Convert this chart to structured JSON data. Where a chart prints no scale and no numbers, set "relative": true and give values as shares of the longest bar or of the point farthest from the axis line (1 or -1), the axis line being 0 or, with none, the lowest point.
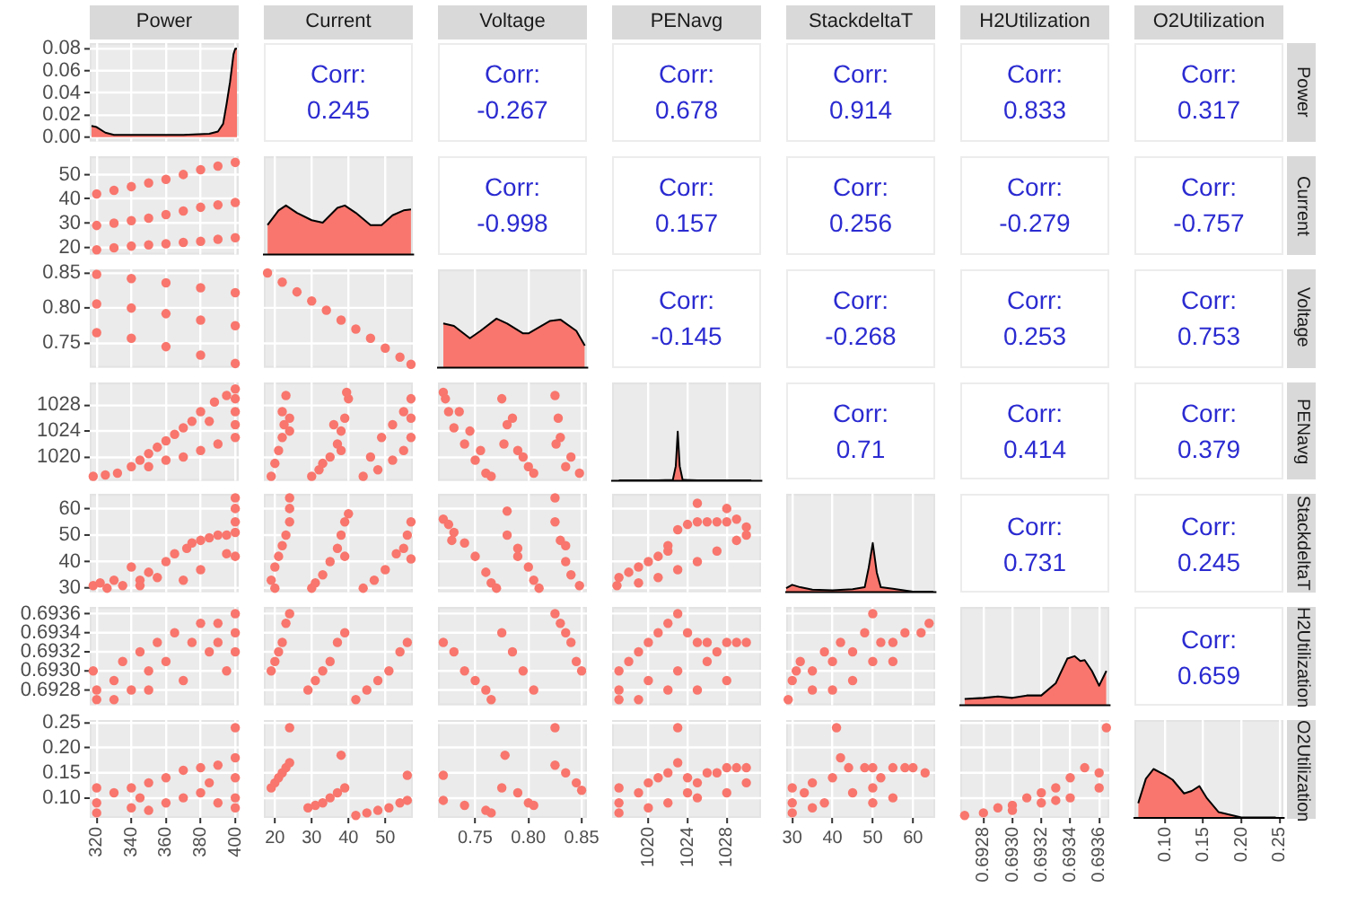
{
  "chart_data": [
    {
      "type": "area",
      "title": "Power",
      "x": [
        317,
        320,
        325,
        330,
        350,
        370,
        385,
        390,
        393,
        395,
        397,
        399,
        400,
        401
      ],
      "values": [
        0.01,
        0.009,
        0.004,
        0.002,
        0.002,
        0.002,
        0.003,
        0.005,
        0.012,
        0.03,
        0.05,
        0.075,
        0.08,
        0.08
      ],
      "color": "#f8766d",
      "xlim": [
        316,
        402
      ],
      "xticks": [
        320,
        340,
        360,
        380,
        400
      ],
      "ylim": [
        -0.004,
        0.085
      ],
      "yticks": [
        {
          "value": 0,
          "label": "0.00"
        },
        {
          "value": 0.02,
          "label": "0.02"
        },
        {
          "value": 0.04,
          "label": "0.04"
        },
        {
          "value": 0.06,
          "label": "0.06"
        },
        {
          "value": 0.08,
          "label": "0.08"
        }
      ],
      "grid": true,
      "tick_labels": "y"
    },
    {
      "type": "other",
      "categories": [
        "Current",
        "Voltage",
        "PENavg",
        "StackdeltaT",
        "H2Utilization",
        "O2Utilization"
      ],
      "y2label": "Power",
      "annotations": [
        "Corr:",
        "0.245",
        "Corr:",
        "-0.267",
        "Corr:",
        "0.678",
        "Corr:",
        "0.914",
        "Corr:",
        "0.833",
        "Corr:",
        "0.317"
      ]
    },
    {
      "type": "scatter",
      "x": [
        320,
        330,
        340,
        350,
        360,
        370,
        380,
        390,
        400,
        320,
        330,
        340,
        350,
        360,
        370,
        380,
        390,
        400,
        320,
        330,
        340,
        350,
        360,
        370,
        380,
        390,
        400
      ],
      "values": [
        42,
        43.5,
        45,
        46.5,
        48,
        50,
        52,
        53.5,
        55,
        29,
        30,
        31,
        32,
        33.5,
        35,
        36.5,
        37.5,
        38.5,
        19,
        19.8,
        20.5,
        21,
        21.5,
        22,
        22.5,
        23.3,
        24
      ],
      "color": "#f8766d",
      "marker": "circle",
      "xlim": [
        316,
        402
      ],
      "xticks": [
        320,
        340,
        360,
        380,
        400
      ],
      "ylim": [
        17,
        57.5
      ],
      "yticks": [
        20,
        30,
        40,
        50
      ],
      "grid": true,
      "tick_labels": "y"
    },
    {
      "type": "area",
      "relative": true,
      "x": [
        18,
        21,
        23,
        26,
        30,
        33,
        37,
        39,
        42,
        46,
        49,
        52,
        55,
        57
      ],
      "values": [
        0.6,
        0.9,
        1,
        0.85,
        0.7,
        0.65,
        0.95,
        1,
        0.85,
        0.6,
        0.6,
        0.8,
        0.9,
        0.92
      ],
      "color": "#f8766d",
      "xlim": [
        17,
        57.5
      ],
      "xticks": [
        20,
        30,
        40,
        50
      ],
      "grid": "x",
      "tick_labels": false
    },
    {
      "type": "other",
      "categories": [
        null,
        null,
        null,
        null,
        null
      ],
      "y2label": "Current",
      "annotations": [
        "Corr:",
        "-0.998",
        "Corr:",
        "0.157",
        "Corr:",
        "0.256",
        "Corr:",
        "-0.279",
        "Corr:",
        "-0.757"
      ]
    },
    {
      "type": "scatter",
      "x": [
        320,
        340,
        360,
        380,
        400,
        320,
        340,
        360,
        380,
        400,
        320,
        340,
        360,
        380,
        400
      ],
      "values": [
        0.848,
        0.842,
        0.836,
        0.829,
        0.822,
        0.806,
        0.8,
        0.792,
        0.783,
        0.775,
        0.765,
        0.757,
        0.745,
        0.733,
        0.721
      ],
      "color": "#f8766d",
      "marker": "circle",
      "xlim": [
        316,
        402
      ],
      "xticks": [
        320,
        340,
        360,
        380,
        400
      ],
      "ylim": [
        0.715,
        0.855
      ],
      "yticks": [
        0.75,
        {
          "value": 0.8,
          "label": "0.80"
        },
        0.85
      ],
      "grid": true,
      "tick_labels": "y"
    },
    {
      "type": "scatter",
      "x": [
        18,
        22,
        26,
        30,
        34,
        38,
        42,
        46,
        50,
        54,
        57
      ],
      "values": [
        0.85,
        0.837,
        0.823,
        0.81,
        0.797,
        0.783,
        0.77,
        0.757,
        0.743,
        0.73,
        0.72
      ],
      "color": "#f8766d",
      "marker": "circle",
      "xlim": [
        17,
        57.5
      ],
      "xticks": [
        20,
        30,
        40,
        50
      ],
      "ylim": [
        0.715,
        0.855
      ],
      "yticks": [
        0.75,
        0.8,
        0.85
      ],
      "grid": true,
      "tick_labels": false
    },
    {
      "type": "area",
      "relative": true,
      "x": [
        0.72,
        0.73,
        0.745,
        0.755,
        0.77,
        0.78,
        0.795,
        0.8,
        0.82,
        0.83,
        0.845,
        0.853
      ],
      "values": [
        0.9,
        0.85,
        0.6,
        0.75,
        1,
        0.9,
        0.7,
        0.7,
        0.95,
        0.98,
        0.75,
        0.45
      ],
      "color": "#f8766d",
      "xlim": [
        0.715,
        0.855
      ],
      "xticks": [
        0.75,
        0.8,
        0.85
      ],
      "grid": "x",
      "tick_labels": false
    },
    {
      "type": "other",
      "categories": [
        null,
        null,
        null,
        null
      ],
      "y2label": "Voltage",
      "annotations": [
        "Corr:",
        "-0.145",
        "Corr:",
        "-0.268",
        "Corr:",
        "0.253",
        "Corr:",
        "0.753"
      ]
    },
    {
      "type": "scatter",
      "x": [
        318,
        325,
        332,
        340,
        345,
        350,
        355,
        360,
        365,
        370,
        375,
        380,
        388,
        395,
        350,
        360,
        370,
        380,
        390,
        400,
        400,
        400,
        400,
        400,
        385
      ],
      "values": [
        1017,
        1017.2,
        1017.5,
        1018.5,
        1019.5,
        1020.5,
        1021.5,
        1022.5,
        1023.5,
        1024.5,
        1025.5,
        1027,
        1028.5,
        1029.5,
        1018.5,
        1019.5,
        1020,
        1021,
        1022,
        1023,
        1025,
        1027,
        1029,
        1030.5,
        1025.5
      ],
      "color": "#f8766d",
      "marker": "circle",
      "xlim": [
        316,
        402
      ],
      "xticks": [
        320,
        340,
        360,
        380,
        400
      ],
      "ylim": [
        1016.3,
        1031.5
      ],
      "yticks": [
        1020,
        1024,
        1028
      ],
      "grid": true,
      "tick_labels": "y"
    },
    {
      "type": "scatter",
      "x": [
        19,
        20,
        21,
        22,
        22.5,
        22,
        23,
        24,
        24,
        30,
        32,
        35,
        37,
        38,
        39,
        40,
        39.5,
        36,
        33,
        38,
        44,
        48,
        52,
        55,
        57,
        57,
        57,
        55,
        52,
        49,
        46
      ],
      "values": [
        1017,
        1019,
        1021,
        1023,
        1025,
        1027,
        1029.5,
        1026,
        1024,
        1017,
        1018,
        1020,
        1022,
        1024,
        1026,
        1029,
        1030,
        1025,
        1019,
        1021,
        1017,
        1018,
        1019.5,
        1021,
        1023,
        1026,
        1029,
        1027,
        1025,
        1023,
        1020
      ],
      "color": "#f8766d",
      "marker": "circle",
      "xlim": [
        17,
        57.5
      ],
      "xticks": [
        20,
        30,
        40,
        50
      ],
      "ylim": [
        1016.3,
        1031.5
      ],
      "yticks": [
        1020,
        1024,
        1028
      ],
      "grid": true,
      "tick_labels": false
    },
    {
      "type": "scatter",
      "x": [
        0.72,
        0.725,
        0.73,
        0.74,
        0.75,
        0.76,
        0.765,
        0.755,
        0.745,
        0.735,
        0.722,
        0.775,
        0.78,
        0.79,
        0.8,
        0.805,
        0.795,
        0.785,
        0.777,
        0.825,
        0.828,
        0.83,
        0.84,
        0.848,
        0.835,
        0.826
      ],
      "values": [
        1030,
        1027,
        1024.5,
        1022,
        1019.5,
        1017.5,
        1017,
        1021,
        1024,
        1027,
        1029,
        1029,
        1025,
        1021,
        1018.5,
        1017.5,
        1020,
        1026,
        1022,
        1029.5,
        1026,
        1023,
        1020,
        1017.5,
        1018.5,
        1022
      ],
      "color": "#f8766d",
      "marker": "circle",
      "xlim": [
        0.715,
        0.855
      ],
      "xticks": [
        0.75,
        0.8,
        0.85
      ],
      "ylim": [
        1016.3,
        1031.5
      ],
      "yticks": [
        1020,
        1024,
        1028
      ],
      "grid": true,
      "tick_labels": false
    },
    {
      "type": "area",
      "relative": true,
      "x": [
        1017,
        1019,
        1021,
        1022.5,
        1022.8,
        1023,
        1023.2,
        1023.5,
        1025,
        1027,
        1029,
        1030.5
      ],
      "values": [
        0.01,
        0.01,
        0.01,
        0.02,
        0.3,
        1,
        0.3,
        0.02,
        0.01,
        0.01,
        0.01,
        0.01
      ],
      "color": "#f8766d",
      "xlim": [
        1016.3,
        1031.5
      ],
      "xticks": [
        1020,
        1024,
        1028
      ],
      "grid": "x",
      "tick_labels": false
    },
    {
      "type": "other",
      "categories": [
        null,
        null,
        null
      ],
      "y2label": "PENavg",
      "annotations": [
        "Corr:",
        "0.71",
        "Corr:",
        "0.414",
        "Corr:",
        "0.379"
      ]
    },
    {
      "type": "scatter",
      "x": [
        318,
        322,
        326,
        330,
        335,
        340,
        345,
        350,
        355,
        360,
        365,
        370,
        372,
        375,
        380,
        385,
        390,
        395,
        400,
        400,
        400,
        400,
        400,
        395,
        380,
        345
      ],
      "values": [
        31,
        32,
        30,
        33,
        31,
        38,
        33,
        36,
        34,
        40,
        43,
        33,
        45,
        47,
        48,
        49,
        50,
        50,
        51,
        55,
        60,
        64,
        42,
        43,
        37,
        31
      ],
      "color": "#f8766d",
      "marker": "circle",
      "xlim": [
        316,
        402
      ],
      "xticks": [
        320,
        340,
        360,
        380,
        400
      ],
      "ylim": [
        28.5,
        65.5
      ],
      "yticks": [
        30,
        40,
        50,
        60
      ],
      "grid": true,
      "tick_labels": "y"
    },
    {
      "type": "scatter",
      "x": [
        20,
        19,
        20,
        21,
        22,
        23,
        24,
        24,
        24,
        30,
        31,
        33,
        35,
        37,
        38,
        39,
        40,
        39,
        44,
        47,
        50,
        53,
        56,
        57,
        57,
        55
      ],
      "values": [
        30,
        33,
        38,
        42,
        46,
        50,
        55,
        60,
        64,
        30,
        32,
        35,
        40,
        45,
        50,
        55,
        58,
        42,
        30,
        33,
        37,
        43,
        50,
        55,
        41,
        45
      ],
      "color": "#f8766d",
      "marker": "circle",
      "xlim": [
        17,
        57.5
      ],
      "xticks": [
        20,
        30,
        40,
        50
      ],
      "ylim": [
        28.5,
        65.5
      ],
      "yticks": [
        30,
        40,
        50,
        60
      ],
      "grid": true,
      "tick_labels": false
    },
    {
      "type": "scatter",
      "x": [
        0.72,
        0.725,
        0.73,
        0.74,
        0.75,
        0.76,
        0.765,
        0.77,
        0.728,
        0.78,
        0.78,
        0.79,
        0.8,
        0.805,
        0.81,
        0.79,
        0.825,
        0.825,
        0.83,
        0.835,
        0.84,
        0.848,
        0.835
      ],
      "values": [
        56,
        54,
        51,
        47,
        42,
        36,
        32,
        30,
        48,
        59,
        50,
        45,
        38,
        33,
        30,
        42,
        64,
        55,
        48,
        40,
        35,
        31,
        46
      ],
      "color": "#f8766d",
      "marker": "circle",
      "xlim": [
        0.715,
        0.855
      ],
      "xticks": [
        0.75,
        0.8,
        0.85
      ],
      "ylim": [
        28.5,
        65.5
      ],
      "yticks": [
        30,
        40,
        50,
        60
      ],
      "grid": true,
      "tick_labels": false
    },
    {
      "type": "scatter",
      "x": [
        1016.8,
        1017,
        1018,
        1019,
        1020,
        1021,
        1022,
        1023,
        1024,
        1025,
        1026,
        1027,
        1028,
        1029,
        1030,
        1030,
        1029,
        1027,
        1025,
        1023,
        1021,
        1019,
        1025,
        1028,
        1022
      ],
      "values": [
        31,
        34,
        36,
        38,
        40,
        42,
        44,
        52,
        54,
        55,
        55,
        55,
        55,
        56,
        53,
        50,
        48,
        44,
        40,
        37,
        34,
        32,
        62,
        60,
        46
      ],
      "color": "#f8766d",
      "marker": "circle",
      "xlim": [
        1016.3,
        1031.5
      ],
      "xticks": [
        1020,
        1024,
        1028
      ],
      "ylim": [
        28.5,
        65.5
      ],
      "yticks": [
        30,
        40,
        50,
        60
      ],
      "grid": true,
      "tick_labels": false
    },
    {
      "type": "area",
      "relative": true,
      "x": [
        28.5,
        30,
        32,
        35,
        40,
        45,
        48,
        49,
        50,
        51,
        52,
        55,
        60,
        65
      ],
      "values": [
        0.08,
        0.15,
        0.1,
        0.05,
        0.04,
        0.06,
        0.1,
        0.5,
        1,
        0.4,
        0.1,
        0.07,
        0.01,
        0.01
      ],
      "color": "#f8766d",
      "xlim": [
        28.5,
        65.5
      ],
      "xticks": [
        30,
        40,
        50,
        60
      ],
      "grid": "x",
      "tick_labels": false
    },
    {
      "type": "other",
      "categories": [
        null,
        null
      ],
      "y2label": "StackdeltaT",
      "annotations": [
        "Corr:",
        "0.731",
        "Corr:",
        "0.245"
      ]
    },
    {
      "type": "scatter",
      "x": [
        318,
        320,
        320,
        330,
        335,
        340,
        345,
        350,
        355,
        360,
        365,
        370,
        375,
        380,
        385,
        390,
        395,
        400,
        400,
        400,
        330,
        350,
        390
      ],
      "values": [
        0.693,
        0.6928,
        0.6927,
        0.6929,
        0.6931,
        0.6928,
        0.6932,
        0.693,
        0.6933,
        0.6931,
        0.6934,
        0.6929,
        0.6933,
        0.6935,
        0.6932,
        0.6935,
        0.693,
        0.6936,
        0.6934,
        0.6932,
        0.6927,
        0.6928,
        0.6933
      ],
      "color": "#f8766d",
      "marker": "circle",
      "xlim": [
        316,
        402
      ],
      "xticks": [
        320,
        340,
        360,
        380,
        400
      ],
      "ylim": [
        0.69264,
        0.69367
      ],
      "yticks": [
        0.6928,
        {
          "value": 0.693,
          "label": "0.6930"
        },
        0.6932,
        0.6934,
        0.6936
      ],
      "grid": true,
      "tick_labels": "y"
    },
    {
      "type": "scatter",
      "x": [
        19,
        20,
        21,
        22,
        23,
        24,
        29,
        31,
        33,
        35,
        37,
        39,
        42,
        45,
        48,
        51,
        54,
        56
      ],
      "values": [
        0.693,
        0.6931,
        0.6932,
        0.6933,
        0.6935,
        0.6936,
        0.6928,
        0.6929,
        0.693,
        0.6931,
        0.6933,
        0.6934,
        0.6927,
        0.6928,
        0.6929,
        0.693,
        0.6932,
        0.6933
      ],
      "color": "#f8766d",
      "marker": "circle",
      "xlim": [
        17,
        57.5
      ],
      "xticks": [
        20,
        30,
        40,
        50
      ],
      "ylim": [
        0.69264,
        0.69367
      ],
      "yticks": [
        0.6928,
        0.693,
        0.6932,
        0.6934,
        0.6936
      ],
      "grid": true,
      "tick_labels": false
    },
    {
      "type": "scatter",
      "x": [
        0.72,
        0.73,
        0.74,
        0.75,
        0.76,
        0.765,
        0.775,
        0.785,
        0.795,
        0.805,
        0.825,
        0.83,
        0.835,
        0.84,
        0.845,
        0.85
      ],
      "values": [
        0.6933,
        0.6932,
        0.693,
        0.6929,
        0.6928,
        0.6927,
        0.6934,
        0.6932,
        0.693,
        0.6928,
        0.6936,
        0.6935,
        0.6934,
        0.6933,
        0.6931,
        0.693
      ],
      "color": "#f8766d",
      "marker": "circle",
      "xlim": [
        0.715,
        0.855
      ],
      "xticks": [
        0.75,
        0.8,
        0.85
      ],
      "ylim": [
        0.69264,
        0.69367
      ],
      "yticks": [
        0.6928,
        0.693,
        0.6932,
        0.6934,
        0.6936
      ],
      "grid": true,
      "tick_labels": false
    },
    {
      "type": "scatter",
      "x": [
        1017,
        1017,
        1017,
        1018,
        1019,
        1020,
        1021,
        1022,
        1023,
        1024,
        1025,
        1026,
        1027,
        1028,
        1029,
        1030,
        1020,
        1022,
        1025,
        1028,
        1019,
        1023,
        1026
      ],
      "values": [
        0.693,
        0.6928,
        0.6927,
        0.6931,
        0.6932,
        0.6933,
        0.6934,
        0.6935,
        0.6936,
        0.6934,
        0.6933,
        0.6933,
        0.6932,
        0.6933,
        0.6933,
        0.6933,
        0.6929,
        0.6928,
        0.6928,
        0.6929,
        0.6927,
        0.693,
        0.6931
      ],
      "color": "#f8766d",
      "marker": "circle",
      "xlim": [
        1016.3,
        1031.5
      ],
      "xticks": [
        1020,
        1024,
        1028
      ],
      "ylim": [
        0.69264,
        0.69367
      ],
      "yticks": [
        0.6928,
        0.693,
        0.6932,
        0.6934,
        0.6936
      ],
      "grid": true,
      "tick_labels": false
    },
    {
      "type": "scatter",
      "x": [
        29,
        30,
        31,
        32,
        35,
        38,
        40,
        42,
        45,
        48,
        50,
        50,
        52,
        55,
        58,
        62,
        64,
        45,
        40,
        35,
        55
      ],
      "values": [
        0.6927,
        0.6929,
        0.693,
        0.6931,
        0.693,
        0.6932,
        0.6931,
        0.6933,
        0.6932,
        0.6934,
        0.6936,
        0.6931,
        0.6933,
        0.6933,
        0.6934,
        0.6934,
        0.6935,
        0.6929,
        0.6928,
        0.6928,
        0.6931
      ],
      "color": "#f8766d",
      "marker": "circle",
      "xlim": [
        28.5,
        65.5
      ],
      "xticks": [
        30,
        40,
        50,
        60
      ],
      "ylim": [
        0.69264,
        0.69367
      ],
      "yticks": [
        0.6928,
        0.693,
        0.6932,
        0.6934,
        0.6936
      ],
      "grid": true,
      "tick_labels": false
    },
    {
      "type": "area",
      "relative": true,
      "x": [
        0.69267,
        0.6928,
        0.6929,
        0.693,
        0.6931,
        0.6932,
        0.6933,
        0.69338,
        0.69343,
        0.69347,
        0.6935,
        0.69355,
        0.6936,
        0.69365
      ],
      "values": [
        0.13,
        0.15,
        0.18,
        0.15,
        0.2,
        0.2,
        0.45,
        0.95,
        1,
        0.9,
        0.92,
        0.7,
        0.4,
        0.7
      ],
      "color": "#f8766d",
      "xlim": [
        0.69264,
        0.69367
      ],
      "xticks": [
        0.6928,
        0.693,
        0.6932,
        0.6934,
        0.6936
      ],
      "grid": "x",
      "tick_labels": false
    },
    {
      "type": "other",
      "categories": [
        null
      ],
      "y2label": "H2Utilization",
      "annotations": [
        "Corr:",
        "0.659"
      ]
    },
    {
      "type": "scatter",
      "x": [
        320,
        320,
        320,
        330,
        340,
        340,
        350,
        350,
        360,
        360,
        370,
        370,
        380,
        380,
        390,
        390,
        400,
        400,
        400,
        400,
        400,
        385,
        345
      ],
      "values": [
        0.12,
        0.09,
        0.07,
        0.11,
        0.08,
        0.12,
        0.13,
        0.075,
        0.09,
        0.14,
        0.155,
        0.1,
        0.11,
        0.16,
        0.165,
        0.09,
        0.24,
        0.18,
        0.14,
        0.1,
        0.08,
        0.13,
        0.1
      ],
      "color": "#f8766d",
      "marker": "circle",
      "xlim": [
        316,
        402
      ],
      "xticks": [
        320,
        340,
        360,
        380,
        400
      ],
      "ylim": [
        0.06,
        0.255
      ],
      "yticks": [
        {
          "value": 0.1,
          "label": "0.10"
        },
        0.15,
        {
          "value": 0.2,
          "label": "0.20"
        },
        0.25
      ],
      "grid": true
    },
    {
      "type": "scatter",
      "x": [
        19,
        20,
        21,
        22,
        23,
        24,
        24,
        29,
        31,
        33,
        35,
        37,
        39,
        38,
        42,
        45,
        48,
        51,
        54,
        56,
        56
      ],
      "values": [
        0.12,
        0.13,
        0.14,
        0.15,
        0.16,
        0.17,
        0.24,
        0.08,
        0.085,
        0.09,
        0.1,
        0.11,
        0.12,
        0.185,
        0.065,
        0.07,
        0.075,
        0.08,
        0.09,
        0.095,
        0.145
      ],
      "color": "#f8766d",
      "marker": "circle",
      "xlim": [
        17,
        57.5
      ],
      "xticks": [
        20,
        30,
        40,
        50
      ],
      "ylim": [
        0.06,
        0.255
      ],
      "yticks": [
        0.1,
        0.15,
        0.2,
        0.25
      ],
      "grid": true,
      "tick_labels": "x"
    },
    {
      "type": "scatter",
      "x": [
        0.72,
        0.72,
        0.74,
        0.76,
        0.765,
        0.778,
        0.775,
        0.79,
        0.8,
        0.805,
        0.825,
        0.825,
        0.835,
        0.845,
        0.85
      ],
      "values": [
        0.145,
        0.095,
        0.085,
        0.075,
        0.07,
        0.185,
        0.12,
        0.11,
        0.09,
        0.085,
        0.24,
        0.165,
        0.15,
        0.13,
        0.115
      ],
      "color": "#f8766d",
      "marker": "circle",
      "xlim": [
        0.715,
        0.855
      ],
      "xticks": [
        0.75,
        {
          "value": 0.8,
          "label": "0.80"
        },
        0.85
      ],
      "ylim": [
        0.06,
        0.255
      ],
      "yticks": [
        0.1,
        0.15,
        0.2,
        0.25
      ],
      "grid": true,
      "tick_labels": "x"
    },
    {
      "type": "scatter",
      "x": [
        1017,
        1017,
        1017,
        1019,
        1020,
        1021,
        1022,
        1023,
        1023,
        1024,
        1025,
        1026,
        1027,
        1028,
        1029,
        1030,
        1022,
        1025,
        1028,
        1020,
        1024,
        1030
      ],
      "values": [
        0.12,
        0.09,
        0.07,
        0.11,
        0.13,
        0.14,
        0.15,
        0.24,
        0.17,
        0.14,
        0.13,
        0.15,
        0.15,
        0.16,
        0.16,
        0.16,
        0.09,
        0.1,
        0.11,
        0.08,
        0.11,
        0.13
      ],
      "color": "#f8766d",
      "marker": "circle",
      "xlim": [
        1016.3,
        1031.5
      ],
      "xticks": [
        1020,
        1024,
        1028
      ],
      "ylim": [
        0.06,
        0.255
      ],
      "yticks": [
        0.1,
        0.15,
        0.2,
        0.25
      ],
      "grid": true,
      "tick_labels": "x"
    },
    {
      "type": "scatter",
      "x": [
        30,
        30,
        30,
        33,
        35,
        38,
        40,
        41,
        42,
        44,
        45,
        48,
        50,
        50,
        50,
        52,
        55,
        58,
        60,
        63,
        55,
        35
      ],
      "values": [
        0.12,
        0.09,
        0.07,
        0.11,
        0.13,
        0.09,
        0.14,
        0.24,
        0.18,
        0.16,
        0.11,
        0.16,
        0.16,
        0.12,
        0.09,
        0.14,
        0.16,
        0.16,
        0.16,
        0.15,
        0.1,
        0.08
      ],
      "color": "#f8766d",
      "marker": "circle",
      "xlim": [
        28.5,
        65.5
      ],
      "xticks": [
        30,
        40,
        50,
        60
      ],
      "ylim": [
        0.06,
        0.255
      ],
      "yticks": [
        0.1,
        0.15,
        0.2,
        0.25
      ],
      "grid": true,
      "tick_labels": "x"
    },
    {
      "type": "scatter",
      "x": [
        0.69267,
        0.6928,
        0.6929,
        0.693,
        0.6931,
        0.6932,
        0.6933,
        0.6934,
        0.6935,
        0.6936,
        0.69365,
        0.6932,
        0.6934,
        0.6936,
        0.693,
        0.6933
      ],
      "values": [
        0.065,
        0.07,
        0.08,
        0.085,
        0.1,
        0.11,
        0.12,
        0.14,
        0.16,
        0.15,
        0.24,
        0.09,
        0.1,
        0.12,
        0.075,
        0.095
      ],
      "color": "#f8766d",
      "marker": "circle",
      "xlim": [
        0.69264,
        0.69367
      ],
      "xticks": [
        0.6928,
        {
          "value": 0.693,
          "label": "0.6930"
        },
        0.6932,
        0.6934,
        0.6936
      ],
      "ylim": [
        0.06,
        0.255
      ],
      "yticks": [
        0.1,
        0.15,
        0.2,
        0.25
      ],
      "grid": true,
      "tick_labels": "x"
    },
    {
      "type": "area",
      "relative": true,
      "y2label": "O2Utilization",
      "x": [
        0.065,
        0.075,
        0.085,
        0.1,
        0.11,
        0.125,
        0.135,
        0.145,
        0.155,
        0.17,
        0.2,
        0.245
      ],
      "values": [
        0.3,
        0.8,
        1,
        0.88,
        0.78,
        0.5,
        0.55,
        0.65,
        0.4,
        0.12,
        0.01,
        0.01
      ],
      "color": "#f8766d",
      "xlim": [
        0.06,
        0.255
      ],
      "xticks": [
        {
          "value": 0.1,
          "label": "0.10"
        },
        0.15,
        {
          "value": 0.2,
          "label": "0.20"
        },
        0.25
      ],
      "grid": "x",
      "tick_labels": "x"
    }
  ]
}
